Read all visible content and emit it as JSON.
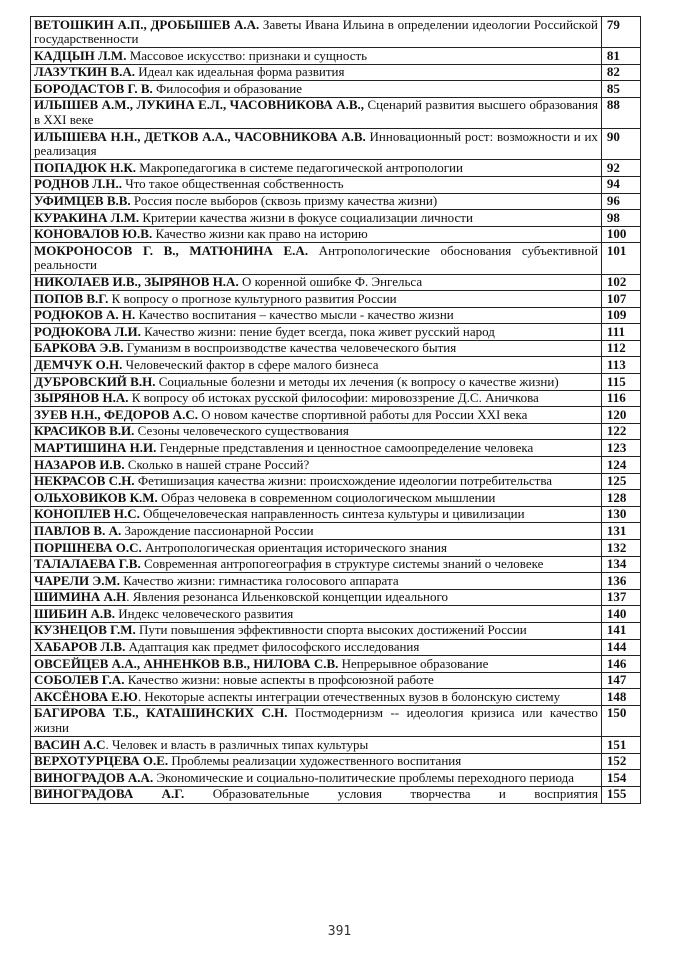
{
  "entries": [
    {
      "author": "ВЕТОШКИН А.П., ДРОБЫШЕВ А.А.",
      "title": " Заветы Ивана Ильина в определении идеологии Российской государственности",
      "page": "79"
    },
    {
      "author": "КАДЦЫН Л.М.",
      "title": " Массовое искусство: признаки и сущность",
      "page": "81"
    },
    {
      "author": "ЛАЗУТКИН В.А.",
      "title": " Идеал как идеальная форма развития",
      "page": "82"
    },
    {
      "author": "БОРОДАСТОВ Г. В.",
      "title": " Философия и образование",
      "page": "85"
    },
    {
      "author": "ИЛЫШЕВ А.М., ЛУКИНА Е.Л., ЧАСОВНИКОВА А.В.,",
      "title": " Сценарий развития высшего образования в XXI веке",
      "page": "88"
    },
    {
      "author": "ИЛЫШЕВА Н.Н., ДЕТКОВ А.А., ЧАСОВНИКОВА А.В.",
      "title": " Инновационный рост: возможности и их реализация",
      "page": "90"
    },
    {
      "author": "ПОПАДЮК Н.К.",
      "title": " Макропедагогика в системе педагогической антропологии",
      "page": "92"
    },
    {
      "author": "РОДНОВ Л.Н..",
      "title": " Что такое общественная собственность",
      "page": "94"
    },
    {
      "author": "УФИМЦЕВ В.В.",
      "title": " Россия после выборов (сквозь призму качества жизни)",
      "page": "96"
    },
    {
      "author": "КУРАКИНА Л.М.",
      "title": " Критерии качества жизни в фокусе социализации личности",
      "page": "98"
    },
    {
      "author": "КОНОВАЛОВ Ю.В.",
      "title": " Качество жизни как право на историю",
      "page": "100"
    },
    {
      "author": "МОКРОНОСОВ Г. В., МАТЮНИНА Е.А.",
      "title": " Антропологические обоснования субъективной реальности",
      "page": "101"
    },
    {
      "author": "НИКОЛАЕВ И.В., ЗЫРЯНОВ Н.А.",
      "title": " О коренной ошибке Ф. Энгельса",
      "page": "102"
    },
    {
      "author": "ПОПОВ В.Г.",
      "title": "  К вопросу о прогнозе культурного развития России",
      "page": "107"
    },
    {
      "author": "РОДЮКОВ А. Н.",
      "title": " Качество воспитания – качество мысли - качество жизни",
      "page": "109"
    },
    {
      "author": "РОДЮКОВА Л.И.",
      "title": " Качество жизни: пение будет всегда, пока живет русский народ",
      "page": "111"
    },
    {
      "author": "БАРКОВА Э.В.",
      "title": " Гуманизм в воспроизводстве качества человеческого бытия",
      "page": "112"
    },
    {
      "author": "ДЕМЧУК О.Н.",
      "title": " Человеческий фактор в сфере малого бизнеса",
      "page": "113"
    },
    {
      "author": "ДУБРОВСКИЙ В.Н.",
      "title": " Социальные болезни и методы их лечения (к вопросу о качестве жизни)",
      "page": "115"
    },
    {
      "author": "ЗЫРЯНОВ Н.А.",
      "title": " К вопросу об истоках русской философии: мировоззрение Д.С. Аничкова",
      "page": "116"
    },
    {
      "author": "ЗУЕВ Н.Н., ФЕДОРОВ А.С.",
      "title": " О новом качестве спортивной работы для России XXI века",
      "page": "120"
    },
    {
      "author": "КРАСИКОВ В.И.",
      "title": " Сезоны человеческого существования",
      "page": "122"
    },
    {
      "author": "МАРТИШИНА Н.И.",
      "title": " Гендерные представления и ценностное самоопределение человека",
      "page": "123"
    },
    {
      "author": "НАЗАРОВ И.В.",
      "title": " Сколько в нашей стране Россий?",
      "page": "124"
    },
    {
      "author": "НЕКРАСОВ С.Н.",
      "title": " Фетишизация качества жизни: происхождение идеологии потребительства",
      "page": "125"
    },
    {
      "author": "ОЛЬХОВИКОВ К.М.",
      "title": " Образ человека в современном социологическом мышлении",
      "page": "128"
    },
    {
      "author": "КОНОПЛЕВ Н.С.",
      "title": " Общечеловеческая направленность синтеза культуры и цивилизации",
      "page": "130"
    },
    {
      "author": "ПАВЛОВ В. А.",
      "title": " Зарождение пассионарной России",
      "page": "131"
    },
    {
      "author": "ПОРШНЕВА О.С.",
      "title": " Антропологическая ориентация исторического знания",
      "page": "132"
    },
    {
      "author": "ТАЛАЛАЕВА Г.В.",
      "title": " Современная антропогеография в структуре системы знаний о человеке",
      "page": "134"
    },
    {
      "author": "ЧАРЕЛИ Э.М.",
      "title": " Качество жизни: гимнастика голосового аппарата",
      "page": "136"
    },
    {
      "author": "ШИМИНА А.Н",
      "title": ". Явления резонанса Ильенковской концепции идеального",
      "page": "137"
    },
    {
      "author": "ШИБИН А.В.",
      "title": " Индекс человеческого развития",
      "page": "140"
    },
    {
      "author": "КУЗНЕЦОВ Г.М.",
      "title": " Пути повышения эффективности спорта высоких достижений России",
      "page": "141"
    },
    {
      "author": "ХАБАРОВ Л.В.",
      "title": " Адаптация как предмет философского исследования",
      "page": "144"
    },
    {
      "author": "ОВСЕЙЦЕВ А.А., АННЕНКОВ В.В., НИЛОВА С.В.",
      "title": " Непрерывное образование",
      "page": "146"
    },
    {
      "author": "СОБОЛЕВ Г.А.",
      "title": " Качество жизни: новые аспекты в профсоюзной работе",
      "page": "147"
    },
    {
      "author": "АКСЁНОВА Е.Ю",
      "title": ". Некоторые аспекты интеграции отечественных вузов в болонскую систему",
      "page": "148"
    },
    {
      "author": "БАГИРОВА Т.Б., КАТАШИНСКИХ С.Н.",
      "title": " Постмодернизм -- идеология кризиса или качество жизни",
      "page": "150"
    },
    {
      "author": "ВАСИН А.С",
      "title": ". Человек и власть в различных типах культуры",
      "page": "151"
    },
    {
      "author": "ВЕРХОТУРЦЕВА О.Е.",
      "title": " Проблемы реализации художественного воспитания",
      "page": "152"
    },
    {
      "author": "ВИНОГРАДОВ А.А.",
      "title": " Экономические и социально-политические проблемы переходного периода",
      "page": "154"
    },
    {
      "author": "ВИНОГРАДОВА А.Г.",
      "title": " Образовательные условия творчества и восприятия",
      "page": "155"
    }
  ],
  "footer": {
    "page_number": "391"
  }
}
